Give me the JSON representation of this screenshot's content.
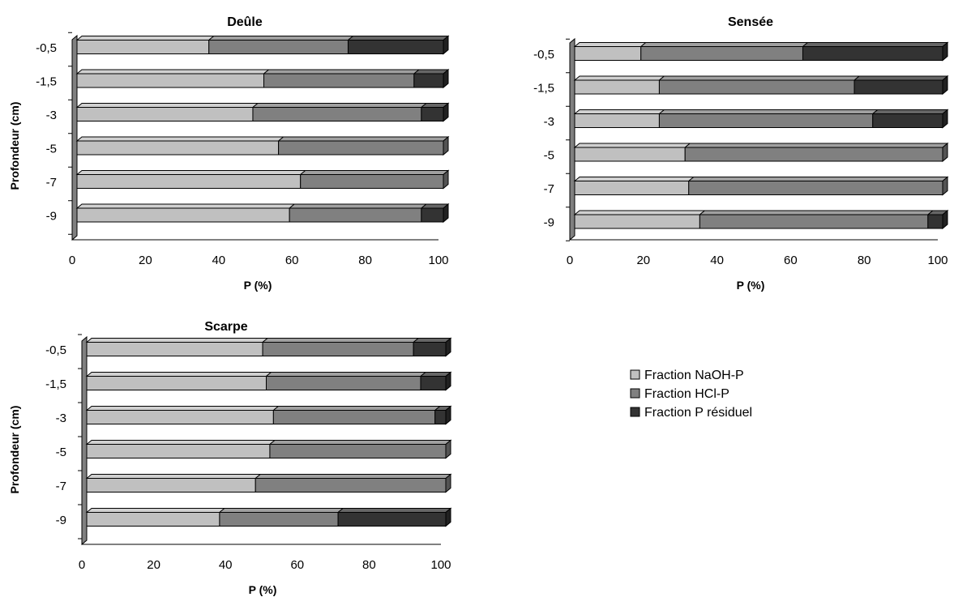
{
  "chart_data": [
    {
      "type": "bar",
      "orientation": "horizontal",
      "stacked": true,
      "style": "3d",
      "title": "Deûle",
      "xlabel": "P (%)",
      "ylabel": "Profondeur (cm)",
      "xlim": [
        0,
        100
      ],
      "xticks": [
        0,
        20,
        40,
        60,
        80,
        100
      ],
      "xtick_labels": [
        "0",
        "20",
        "40",
        "60",
        "80",
        "100"
      ],
      "categories": [
        "-0,5",
        "-1,5",
        "-3",
        "-5",
        "-7",
        "-9"
      ],
      "series": [
        {
          "name": "Fraction NaOH-P",
          "values": [
            36,
            51,
            48,
            55,
            61,
            58
          ]
        },
        {
          "name": "Fraction HCl-P",
          "values": [
            38,
            41,
            46,
            45,
            39,
            36
          ]
        },
        {
          "name": "Fraction P résiduel",
          "values": [
            26,
            8,
            6,
            0,
            0,
            6
          ]
        }
      ]
    },
    {
      "type": "bar",
      "orientation": "horizontal",
      "stacked": true,
      "style": "3d",
      "title": "Sensée",
      "xlabel": "P (%)",
      "ylabel": "",
      "xlim": [
        0,
        100
      ],
      "xticks": [
        0,
        20,
        40,
        60,
        80,
        100
      ],
      "xtick_labels": [
        "0",
        "20",
        "40",
        "60",
        "80",
        "100"
      ],
      "categories": [
        "-0,5",
        "-1,5",
        "-3",
        "-5",
        "-7",
        "-9"
      ],
      "series": [
        {
          "name": "Fraction NaOH-P",
          "values": [
            18,
            23,
            23,
            30,
            31,
            34
          ]
        },
        {
          "name": "Fraction HCl-P",
          "values": [
            44,
            53,
            58,
            70,
            69,
            62
          ]
        },
        {
          "name": "Fraction P résiduel",
          "values": [
            38,
            24,
            19,
            0,
            0,
            4
          ]
        }
      ]
    },
    {
      "type": "bar",
      "orientation": "horizontal",
      "stacked": true,
      "style": "3d",
      "title": "Scarpe",
      "xlabel": "P (%)",
      "ylabel": "Profondeur (cm)",
      "xlim": [
        0,
        100
      ],
      "xticks": [
        0,
        20,
        40,
        60,
        80,
        100
      ],
      "xtick_labels": [
        "0",
        "20",
        "40",
        "60",
        "80",
        "100"
      ],
      "categories": [
        "-0,5",
        "-1,5",
        "-3",
        "-5",
        "-7",
        "-9"
      ],
      "series": [
        {
          "name": "Fraction NaOH-P",
          "values": [
            49,
            50,
            52,
            51,
            47,
            37
          ]
        },
        {
          "name": "Fraction HCl-P",
          "values": [
            42,
            43,
            45,
            49,
            53,
            33
          ]
        },
        {
          "name": "Fraction P résiduel",
          "values": [
            9,
            7,
            3,
            0,
            0,
            30
          ]
        }
      ]
    }
  ],
  "legend": {
    "items": [
      {
        "label": "Fraction NaOH-P",
        "color": "#c0c0c0"
      },
      {
        "label": "Fraction HCl-P",
        "color": "#808080"
      },
      {
        "label": "Fraction P résiduel",
        "color": "#333333"
      }
    ]
  },
  "colors": {
    "series": [
      "#c0c0c0",
      "#808080",
      "#333333"
    ],
    "wall": "#808080",
    "edge": "#000000"
  }
}
